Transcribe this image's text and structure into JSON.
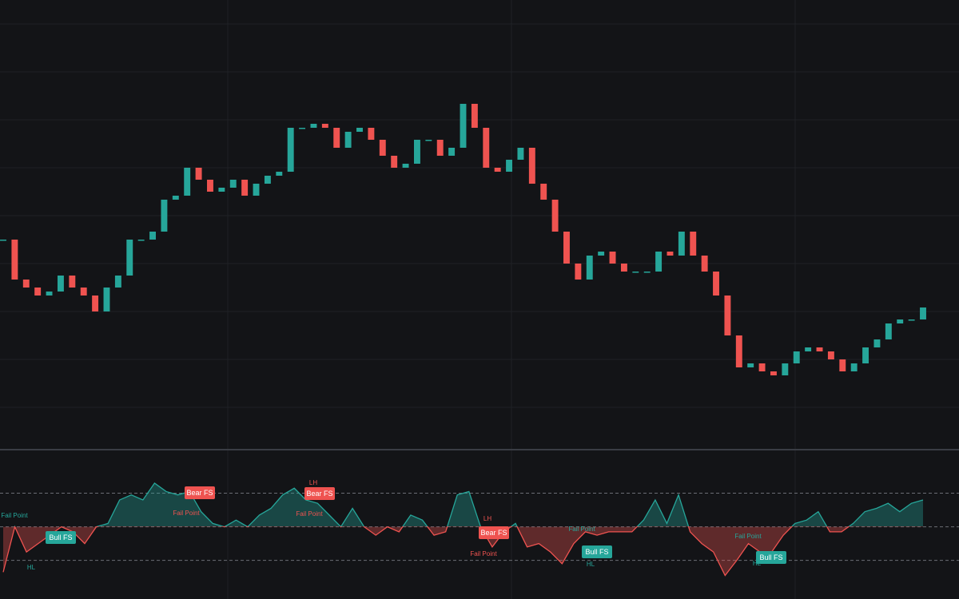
{
  "chart_data": [
    {
      "type": "candlestick",
      "up_color": "#26a69a",
      "down_color": "#ef5350",
      "ylim": [
        0,
        560
      ],
      "values": [
        260,
        210,
        200,
        190,
        195,
        215,
        200,
        190,
        170,
        200,
        215,
        260,
        260,
        270,
        310,
        315,
        350,
        335,
        320,
        325,
        335,
        315,
        330,
        340,
        345,
        400,
        400,
        405,
        400,
        375,
        395,
        400,
        385,
        365,
        350,
        355,
        385,
        385,
        365,
        375,
        430,
        400,
        350,
        345,
        360,
        375,
        330,
        310,
        270,
        230,
        210,
        240,
        245,
        230,
        220,
        220,
        220,
        245,
        240,
        270,
        240,
        220,
        190,
        140,
        100,
        105,
        95,
        90,
        105,
        120,
        125,
        120,
        110,
        95,
        105,
        125,
        135,
        155,
        160,
        160,
        175
      ]
    },
    {
      "type": "oscillator",
      "up_color": "#26a69a",
      "down_color": "#ef5350",
      "ylim": [
        7,
        95
      ],
      "levels": [
        30,
        50,
        70
      ],
      "values": [
        23,
        50,
        35,
        40,
        45,
        50,
        47,
        40,
        50,
        52,
        66,
        69,
        66,
        76,
        71,
        69,
        71,
        59,
        52,
        50,
        54,
        50,
        57,
        61,
        69,
        73,
        66,
        64,
        57,
        50,
        61,
        50,
        45,
        50,
        47,
        57,
        54,
        45,
        47,
        69,
        71,
        50,
        38,
        47,
        52,
        38,
        40,
        35,
        28,
        40,
        47,
        45,
        47,
        47,
        47,
        54,
        66,
        52,
        69,
        47,
        40,
        35,
        21,
        30,
        40,
        35,
        35,
        45,
        52,
        54,
        59,
        47,
        47,
        52,
        59,
        61,
        64,
        59,
        64,
        66
      ],
      "annotations": [
        "Fail Point",
        "Bull FS",
        "HL",
        "Bear FS",
        "Fail Point",
        "LH",
        "Bear FS",
        "Fail Point",
        "LH",
        "Bear FS",
        "Fail Point",
        "Fail Point",
        "Bull FS",
        "HL",
        "Fail Point",
        "Bull FS",
        "HL"
      ]
    }
  ]
}
